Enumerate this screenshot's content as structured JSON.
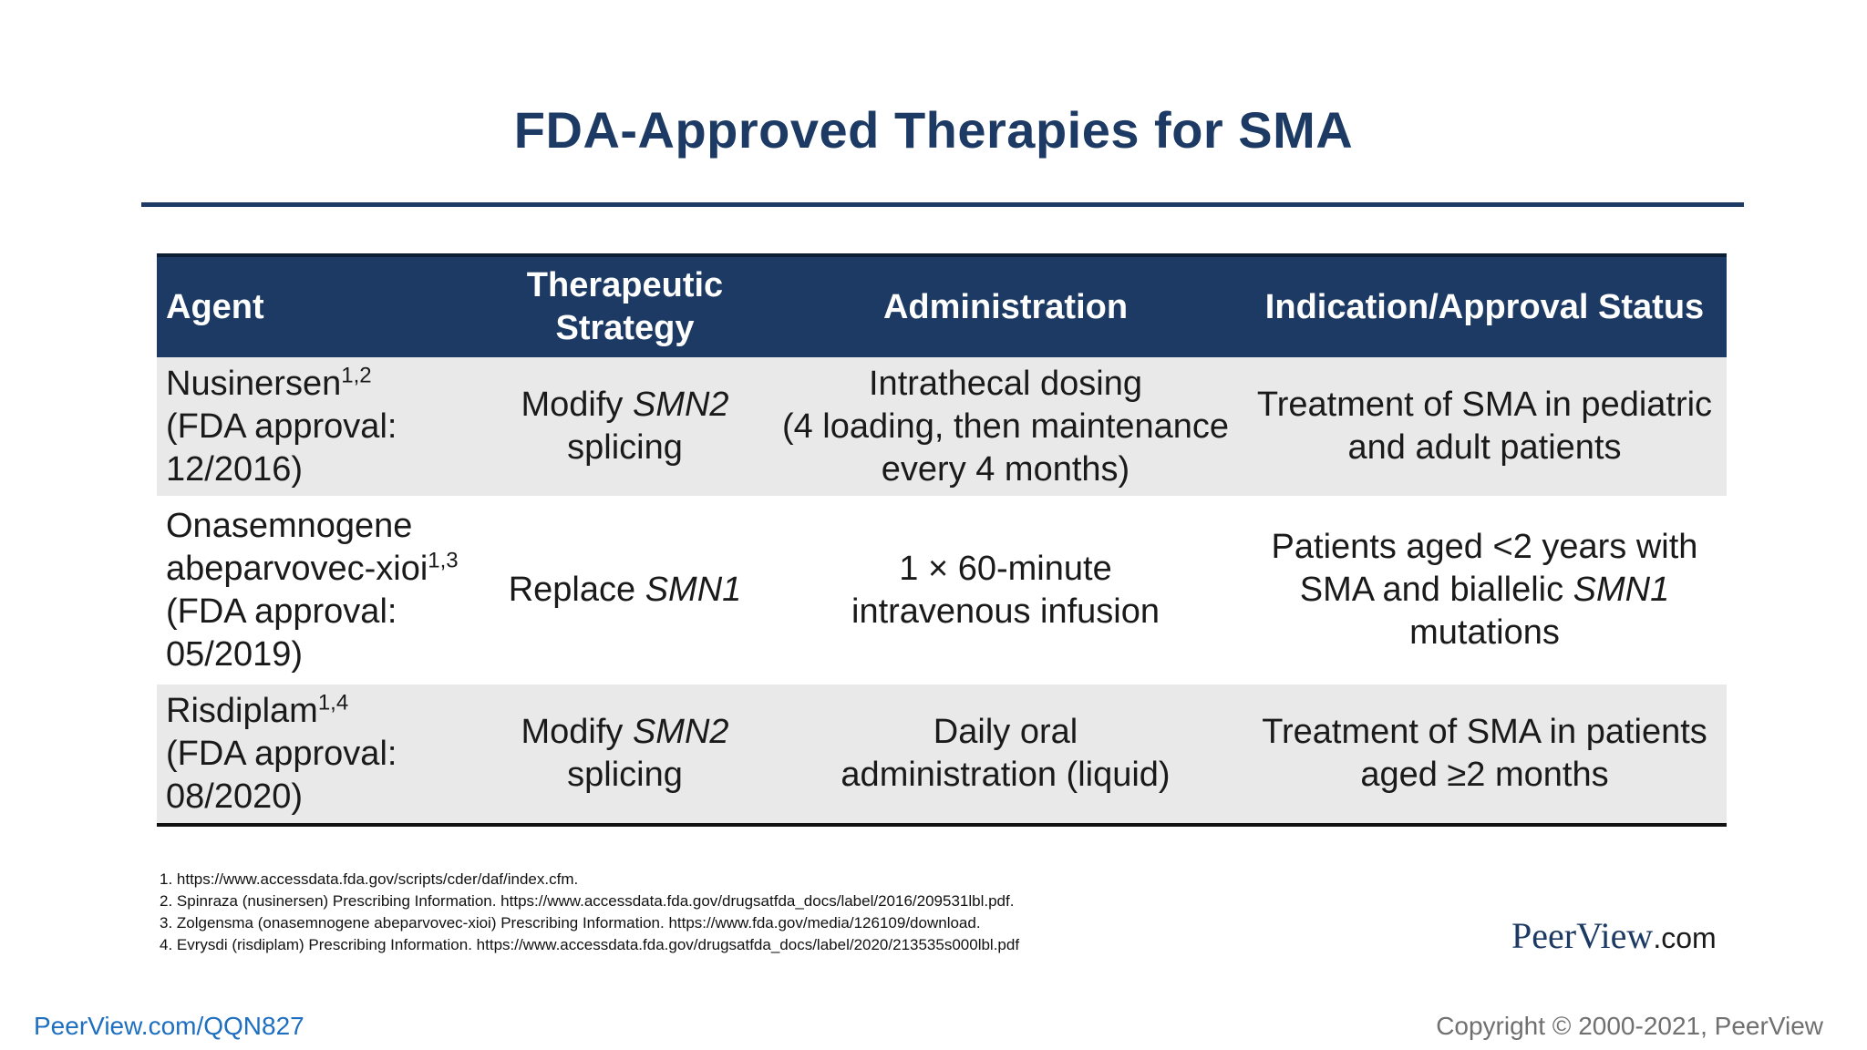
{
  "slide": {
    "title": "FDA-Approved Therapies for SMA"
  },
  "table": {
    "headers": [
      [
        "Agent"
      ],
      [
        "Therapeutic",
        "Strategy"
      ],
      [
        "Administration"
      ],
      [
        "Indication/Approval Status"
      ]
    ],
    "rows": [
      {
        "agent": "Nusinersen",
        "agent_refs": "1,2",
        "agent_lines": [
          "(FDA approval:",
          "12/2016)"
        ],
        "strategy_pre": "Modify ",
        "strategy_gene": "SMN2",
        "strategy_post": "splicing",
        "administration": [
          "Intrathecal dosing",
          "(4 loading, then maintenance",
          "every 4 months)"
        ],
        "indication": [
          "Treatment of SMA in pediatric",
          "and adult patients"
        ]
      },
      {
        "agent": "Onasemnogene",
        "agent2": "abeparvovec-xioi",
        "agent_refs": "1,3",
        "agent_lines": [
          "(FDA approval:",
          "05/2019)"
        ],
        "strategy_pre": "Replace ",
        "strategy_gene": "SMN1",
        "strategy_post": "",
        "administration": [
          "1 × 60-minute",
          "intravenous infusion"
        ],
        "indication_line1": "Patients aged <2 years with",
        "indication_line2_pre": "SMA and biallelic ",
        "indication_line2_gene": "SMN1",
        "indication_line3": "mutations"
      },
      {
        "agent": "Risdiplam",
        "agent_refs": "1,4",
        "agent_lines": [
          "(FDA approval:",
          "08/2020)"
        ],
        "strategy_pre": "Modify ",
        "strategy_gene": "SMN2",
        "strategy_post": "splicing",
        "administration": [
          "Daily oral",
          "administration (liquid)"
        ],
        "indication": [
          "Treatment of SMA in patients",
          "aged ≥2 months"
        ]
      }
    ]
  },
  "references": [
    "1. https://www.accessdata.fda.gov/scripts/cder/daf/index.cfm.",
    "2. Spinraza (nusinersen) Prescribing Information. https://www.accessdata.fda.gov/drugsatfda_docs/label/2016/209531lbl.pdf.",
    "3. Zolgensma (onasemnogene abeparvovec-xioi) Prescribing Information. https://www.fda.gov/media/126109/download.",
    "4. Evrysdi (risdiplam) Prescribing Information. https://www.accessdata.fda.gov/drugsatfda_docs/label/2020/213535s000lbl.pdf"
  ],
  "brand": {
    "name": "PeerView",
    "domain": ".com"
  },
  "footer": {
    "link": "PeerView.com/QQN827",
    "copyright": "Copyright © 2000-2021, PeerView"
  },
  "colors": {
    "navy": "#1c3a63",
    "row_shade": "#e9e9e9",
    "link_blue": "#1f6fc1"
  }
}
